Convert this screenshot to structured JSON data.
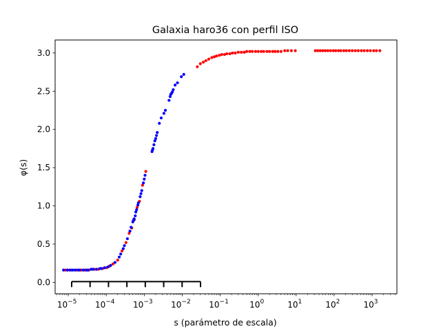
{
  "chart_data": {
    "type": "scatter",
    "title": "Galaxia haro36 con perfil ISO",
    "xlabel": "s (parámetro de escala)",
    "ylabel": "φ(s)",
    "xscale": "log",
    "xlim": [
      4.5e-06,
      4500
    ],
    "ylim": [
      -0.15,
      3.17
    ],
    "x_ticks": [
      {
        "value": 1e-05,
        "base": "10",
        "exp": "−5"
      },
      {
        "value": 0.0001,
        "base": "10",
        "exp": "−4"
      },
      {
        "value": 0.001,
        "base": "10",
        "exp": "−3"
      },
      {
        "value": 0.01,
        "base": "10",
        "exp": "−2"
      },
      {
        "value": 0.1,
        "base": "10",
        "exp": "−1"
      },
      {
        "value": 1,
        "base": "10",
        "exp": "0"
      },
      {
        "value": 10,
        "base": "10",
        "exp": "1"
      },
      {
        "value": 100,
        "base": "10",
        "exp": "2"
      },
      {
        "value": 1000,
        "base": "10",
        "exp": "3"
      }
    ],
    "y_ticks": [
      "0.0",
      "0.5",
      "1.0",
      "1.5",
      "2.0",
      "2.5",
      "3.0"
    ],
    "grid": false,
    "series": [
      {
        "color": "#ff0000",
        "points": [
          [
            8.5e-06,
            0.16
          ],
          [
            1.2e-05,
            0.16
          ],
          [
            1.6e-05,
            0.16
          ],
          [
            2.2e-05,
            0.16
          ],
          [
            2.8e-05,
            0.16
          ],
          [
            3.5e-05,
            0.16
          ],
          [
            4.8e-05,
            0.17
          ],
          [
            6.2e-05,
            0.17
          ],
          [
            8e-05,
            0.18
          ],
          [
            0.0001,
            0.19
          ],
          [
            0.00012,
            0.21
          ],
          [
            0.00015,
            0.24
          ],
          [
            0.0002,
            0.29
          ],
          [
            0.00026,
            0.41
          ],
          [
            0.00033,
            0.52
          ],
          [
            0.0004,
            0.64
          ],
          [
            0.00047,
            0.71
          ],
          [
            0.00055,
            0.82
          ],
          [
            0.00065,
            0.98
          ],
          [
            0.00075,
            1.06
          ],
          [
            0.0009,
            1.27
          ],
          [
            0.0011,
            1.45
          ],
          [
            0.025,
            2.82
          ],
          [
            0.03,
            2.86
          ],
          [
            0.036,
            2.88
          ],
          [
            0.042,
            2.9
          ],
          [
            0.05,
            2.92
          ],
          [
            0.06,
            2.94
          ],
          [
            0.07,
            2.95
          ],
          [
            0.08,
            2.96
          ],
          [
            0.095,
            2.97
          ],
          [
            0.11,
            2.98
          ],
          [
            0.13,
            2.98
          ],
          [
            0.15,
            2.99
          ],
          [
            0.18,
            2.99
          ],
          [
            0.21,
            3.0
          ],
          [
            0.25,
            3.0
          ],
          [
            0.3,
            3.01
          ],
          [
            0.36,
            3.01
          ],
          [
            0.43,
            3.01
          ],
          [
            0.5,
            3.02
          ],
          [
            0.6,
            3.02
          ],
          [
            0.7,
            3.02
          ],
          [
            0.85,
            3.02
          ],
          [
            1.0,
            3.02
          ],
          [
            1.2,
            3.02
          ],
          [
            1.4,
            3.02
          ],
          [
            1.7,
            3.02
          ],
          [
            2.0,
            3.02
          ],
          [
            2.4,
            3.02
          ],
          [
            2.8,
            3.02
          ],
          [
            3.3,
            3.02
          ],
          [
            4.0,
            3.02
          ],
          [
            5.0,
            3.03
          ],
          [
            6.0,
            3.03
          ],
          [
            7.5,
            3.03
          ],
          [
            9.5,
            3.03
          ],
          [
            32,
            3.03
          ],
          [
            37,
            3.03
          ],
          [
            43,
            3.03
          ],
          [
            50,
            3.03
          ],
          [
            58,
            3.03
          ],
          [
            68,
            3.03
          ],
          [
            80,
            3.03
          ],
          [
            95,
            3.03
          ],
          [
            110,
            3.03
          ],
          [
            130,
            3.03
          ],
          [
            150,
            3.03
          ],
          [
            180,
            3.03
          ],
          [
            210,
            3.03
          ],
          [
            250,
            3.03
          ],
          [
            300,
            3.03
          ],
          [
            360,
            3.03
          ],
          [
            430,
            3.03
          ],
          [
            520,
            3.03
          ],
          [
            620,
            3.03
          ],
          [
            750,
            3.03
          ],
          [
            900,
            3.03
          ],
          [
            1100,
            3.03
          ],
          [
            1300,
            3.03
          ],
          [
            1600,
            3.03
          ]
        ]
      },
      {
        "color": "#0000ff",
        "points": [
          [
            7.5e-06,
            0.16
          ],
          [
            9.5e-06,
            0.16
          ],
          [
            1.1e-05,
            0.16
          ],
          [
            1.3e-05,
            0.16
          ],
          [
            1.5e-05,
            0.16
          ],
          [
            1.8e-05,
            0.16
          ],
          [
            2e-05,
            0.16
          ],
          [
            2.5e-05,
            0.16
          ],
          [
            3e-05,
            0.16
          ],
          [
            3.3e-05,
            0.16
          ],
          [
            4e-05,
            0.17
          ],
          [
            4.5e-05,
            0.17
          ],
          [
            5.5e-05,
            0.17
          ],
          [
            6.8e-05,
            0.18
          ],
          [
            7.5e-05,
            0.18
          ],
          [
            9e-05,
            0.19
          ],
          [
            0.00011,
            0.2
          ],
          [
            0.00013,
            0.22
          ],
          [
            0.00017,
            0.26
          ],
          [
            0.00022,
            0.33
          ],
          [
            0.00024,
            0.37
          ],
          [
            0.00028,
            0.44
          ],
          [
            0.0003,
            0.48
          ],
          [
            0.00036,
            0.57
          ],
          [
            0.00042,
            0.67
          ],
          [
            0.00045,
            0.72
          ],
          [
            0.0005,
            0.79
          ],
          [
            0.00052,
            0.81
          ],
          [
            0.00054,
            0.83
          ],
          [
            0.00058,
            0.87
          ],
          [
            0.0006,
            0.92
          ],
          [
            0.00063,
            0.95
          ],
          [
            0.00068,
            1.01
          ],
          [
            0.0007,
            1.04
          ],
          [
            0.00078,
            1.12
          ],
          [
            0.00082,
            1.16
          ],
          [
            0.00086,
            1.2
          ],
          [
            0.00095,
            1.3
          ],
          [
            0.001,
            1.35
          ],
          [
            0.00105,
            1.4
          ],
          [
            0.0016,
            1.71
          ],
          [
            0.00165,
            1.73
          ],
          [
            0.0017,
            1.75
          ],
          [
            0.0018,
            1.8
          ],
          [
            0.0019,
            1.85
          ],
          [
            0.002,
            1.88
          ],
          [
            0.0021,
            1.92
          ],
          [
            0.0022,
            1.96
          ],
          [
            0.0025,
            2.08
          ],
          [
            0.0028,
            2.15
          ],
          [
            0.0033,
            2.21
          ],
          [
            0.0036,
            2.25
          ],
          [
            0.0045,
            2.38
          ],
          [
            0.0048,
            2.43
          ],
          [
            0.005,
            2.46
          ],
          [
            0.0052,
            2.47
          ],
          [
            0.0055,
            2.49
          ],
          [
            0.0058,
            2.52
          ],
          [
            0.0065,
            2.58
          ],
          [
            0.0075,
            2.61
          ],
          [
            0.0095,
            2.69
          ],
          [
            0.011,
            2.72
          ]
        ]
      }
    ]
  }
}
